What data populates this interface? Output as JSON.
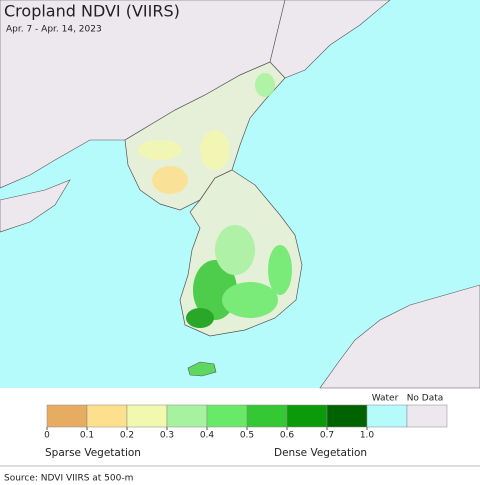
{
  "header": {
    "title": "Cropland NDVI (VIIRS)",
    "subtitle": "Apr. 7 - Apr. 14, 2023"
  },
  "legend": {
    "bins": [
      {
        "color": "#e6ac62"
      },
      {
        "color": "#fddf8e"
      },
      {
        "color": "#f3f8b0"
      },
      {
        "color": "#a6f29e"
      },
      {
        "color": "#68ea68"
      },
      {
        "color": "#34c834"
      },
      {
        "color": "#0a9a0a"
      },
      {
        "color": "#006200"
      }
    ],
    "ticks": [
      0,
      0.1,
      0.2,
      0.3,
      0.4,
      0.5,
      0.6,
      0.7,
      {
        "value": 1,
        "label": "1.0"
      }
    ],
    "water": {
      "label": "Water",
      "color": "#b6fbfb"
    },
    "no_data": {
      "label": "No Data",
      "color": "#ede8ee"
    },
    "low_label": "Sparse Vegetation",
    "high_label": "Dense Vegetation"
  },
  "footer": {
    "source": "Source: NDVI VIIRS at 500-m"
  }
}
